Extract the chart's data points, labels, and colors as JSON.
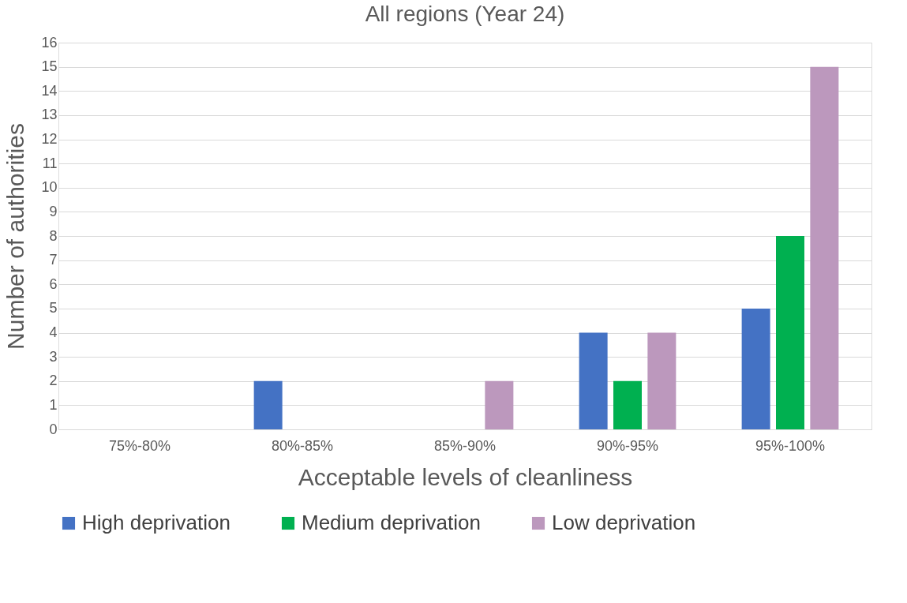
{
  "chart_data": {
    "type": "bar",
    "title": "All regions (Year 24)",
    "xlabel": "Acceptable levels of cleanliness",
    "ylabel": "Number of authorities",
    "categories": [
      "75%-80%",
      "80%-85%",
      "85%-90%",
      "90%-95%",
      "95%-100%"
    ],
    "series": [
      {
        "name": "High deprivation",
        "color": "#4472c4",
        "values": [
          0,
          2,
          0,
          4,
          5
        ]
      },
      {
        "name": "Medium deprivation",
        "color": "#00b050",
        "values": [
          0,
          0,
          0,
          2,
          8
        ]
      },
      {
        "name": "Low deprivation",
        "color": "#bc98bd",
        "values": [
          0,
          0,
          2,
          4,
          15
        ]
      }
    ],
    "ylim": [
      0,
      16
    ],
    "yticks": [
      0,
      1,
      2,
      3,
      4,
      5,
      6,
      7,
      8,
      9,
      10,
      11,
      12,
      13,
      14,
      15,
      16
    ],
    "grid": "y",
    "legend": "bottom"
  }
}
